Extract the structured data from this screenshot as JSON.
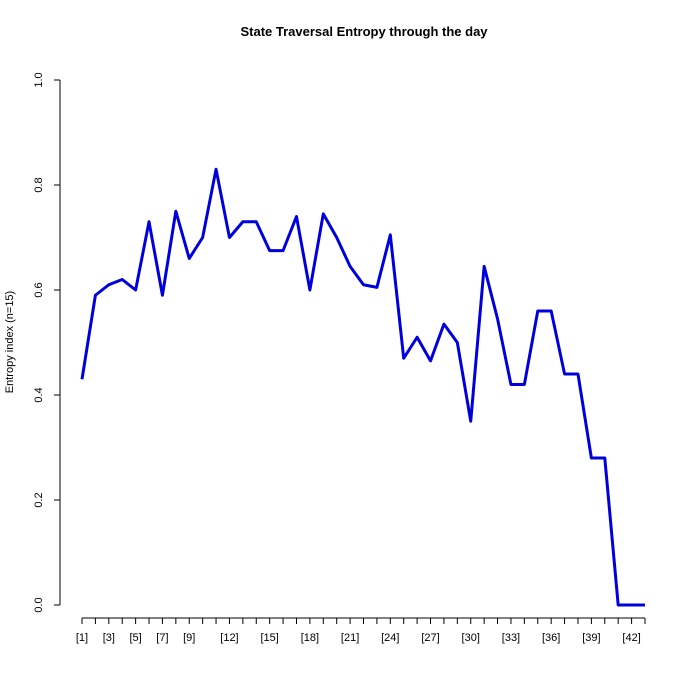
{
  "chart_data": {
    "type": "line",
    "title": "State Traversal Entropy through the day",
    "xlabel": "",
    "ylabel": "Entropy index (n=15)",
    "xlim": [
      1,
      43
    ],
    "ylim": [
      0,
      1
    ],
    "y_ticks": [
      0.0,
      0.2,
      0.4,
      0.6,
      0.8,
      1.0
    ],
    "y_tick_labels": [
      "0.0",
      "0.2",
      "0.4",
      "0.6",
      "0.8",
      "1.0"
    ],
    "x_tick_labels": [
      {
        "x": 1,
        "label": "[1]"
      },
      {
        "x": 3,
        "label": "[3]"
      },
      {
        "x": 5,
        "label": "[5]"
      },
      {
        "x": 7,
        "label": "[7]"
      },
      {
        "x": 9,
        "label": "[9]"
      },
      {
        "x": 12,
        "label": "[12]"
      },
      {
        "x": 15,
        "label": "[15]"
      },
      {
        "x": 18,
        "label": "[18]"
      },
      {
        "x": 21,
        "label": "[21]"
      },
      {
        "x": 24,
        "label": "[24]"
      },
      {
        "x": 27,
        "label": "[27]"
      },
      {
        "x": 30,
        "label": "[30]"
      },
      {
        "x": 33,
        "label": "[33]"
      },
      {
        "x": 36,
        "label": "[36]"
      },
      {
        "x": 39,
        "label": "[39]"
      },
      {
        "x": 42,
        "label": "[42]"
      }
    ],
    "grid": false,
    "series": [
      {
        "color": "#0000dd",
        "x": [
          1,
          2,
          3,
          4,
          5,
          6,
          7,
          8,
          9,
          10,
          11,
          12,
          13,
          14,
          15,
          16,
          17,
          18,
          19,
          20,
          21,
          22,
          23,
          24,
          25,
          26,
          27,
          28,
          29,
          30,
          31,
          32,
          33,
          34,
          35,
          36,
          37,
          38,
          39,
          40,
          41,
          42,
          43
        ],
        "values": [
          0.43,
          0.59,
          0.61,
          0.62,
          0.6,
          0.73,
          0.59,
          0.75,
          0.66,
          0.7,
          0.83,
          0.7,
          0.73,
          0.73,
          0.675,
          0.675,
          0.74,
          0.6,
          0.745,
          0.7,
          0.645,
          0.61,
          0.605,
          0.705,
          0.47,
          0.51,
          0.465,
          0.535,
          0.5,
          0.35,
          0.645,
          0.545,
          0.42,
          0.42,
          0.56,
          0.56,
          0.44,
          0.44,
          0.28,
          0.28,
          0.0,
          0.0,
          0.0
        ]
      }
    ]
  }
}
